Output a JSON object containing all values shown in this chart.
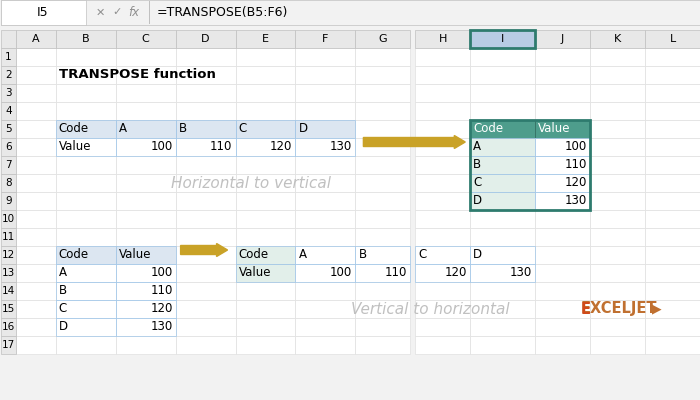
{
  "title": "TRANSPOSE function",
  "formula_bar_cell": "I5",
  "formula_bar_formula": "=TRANSPOSE(B5:F6)",
  "col_labels": [
    "A",
    "B",
    "C",
    "D",
    "E",
    "F",
    "G",
    "H",
    "I",
    "J",
    "K",
    "L"
  ],
  "row_labels": [
    "1",
    "2",
    "3",
    "4",
    "5",
    "6",
    "7",
    "8",
    "9",
    "10",
    "11",
    "12",
    "13",
    "14",
    "15",
    "16",
    "17"
  ],
  "codes": [
    "A",
    "B",
    "C",
    "D"
  ],
  "values": [
    100,
    110,
    120,
    130
  ],
  "bg_color": "#f2f2f2",
  "header_bg": "#dce6f1",
  "teal_header": "#4e9d8c",
  "teal_light": "#e2efea",
  "arrow_color": "#c9a227",
  "cell_border": "#9dc3e6",
  "col_header_bg": "#e8e8e8",
  "col_header_selected": "#b8cce4",
  "watermark_color": "#c0c0c0",
  "exceljet_color_e": "#d04a1a",
  "exceljet_color_rest": "#c07030"
}
